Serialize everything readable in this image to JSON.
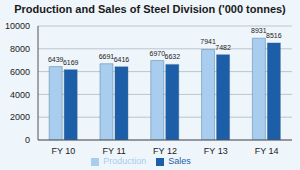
{
  "chart_data": {
    "type": "bar",
    "title": "Production and Sales of Steel Division ('000 tonnes)",
    "categories": [
      "FY 10",
      "FY 11",
      "FY 12",
      "FY 13",
      "FY 14"
    ],
    "series": [
      {
        "name": "Production",
        "color": "#a8cdee",
        "values": [
          6439,
          6691,
          6970,
          7941,
          8931
        ]
      },
      {
        "name": "Sales",
        "color": "#1d5ea8",
        "values": [
          6169,
          6416,
          6632,
          7482,
          8516
        ]
      }
    ],
    "ylim": [
      0,
      10000
    ],
    "yticks": [
      0,
      2000,
      4000,
      6000,
      8000,
      10000
    ],
    "grid": true,
    "data_labels": true,
    "legend": "bottom"
  }
}
